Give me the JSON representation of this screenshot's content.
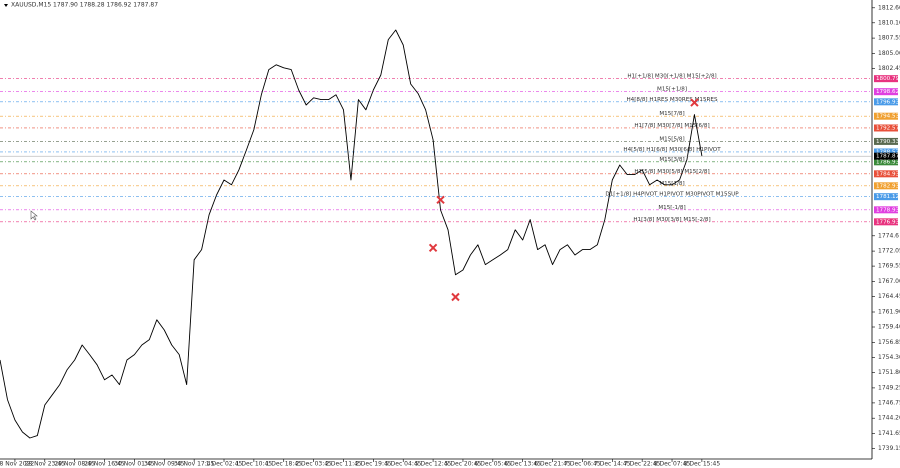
{
  "chart_data": {
    "type": "line",
    "title": "XAUUSD,M15  1787.90 1788.28 1786.92 1787.87",
    "categories": [
      null,
      null,
      "28 Nov 2022",
      null,
      null,
      null,
      "28 Nov 23:45",
      null,
      null,
      null,
      "29 Nov 08:45",
      null,
      null,
      null,
      "29 Nov 16:45",
      null,
      null,
      null,
      "30 Nov 01:45",
      null,
      null,
      null,
      "30 Nov 09:45",
      null,
      null,
      null,
      "30 Nov 17:45",
      null,
      null,
      null,
      "1 Dec 02:45",
      null,
      null,
      null,
      "1 Dec 10:45",
      null,
      null,
      null,
      "1 Dec 18:45",
      null,
      null,
      null,
      "2 Dec 03:45",
      null,
      null,
      null,
      "2 Dec 11:45",
      null,
      null,
      null,
      "2 Dec 19:45",
      null,
      null,
      null,
      "5 Dec 04:45",
      null,
      null,
      null,
      "5 Dec 12:45",
      null,
      null,
      null,
      "5 Dec 20:45",
      null,
      null,
      null,
      "6 Dec 05:45",
      null,
      null,
      null,
      "6 Dec 13:45",
      null,
      null,
      null,
      "6 Dec 21:45",
      null,
      null,
      null,
      "7 Dec 06:45",
      null,
      null,
      null,
      "7 Dec 14:45",
      null,
      null,
      null,
      "7 Dec 22:45",
      null,
      null,
      null,
      "8 Dec 07:45",
      null,
      null,
      null,
      "8 Dec 15:45"
    ],
    "series": [
      {
        "color": "#000000",
        "values": [
          1753.9,
          1747.3,
          1743.9,
          1741.9,
          1740.9,
          1741.3,
          1746.4,
          1748.1,
          1749.8,
          1752.3,
          1753.9,
          1756.4,
          1754.8,
          1753.1,
          1750.6,
          1751.4,
          1749.8,
          1753.9,
          1754.8,
          1756.4,
          1757.3,
          1760.6,
          1758.9,
          1756.4,
          1754.8,
          1749.8,
          1770.6,
          1772.3,
          1778.1,
          1781.4,
          1783.9,
          1783.1,
          1785.6,
          1788.9,
          1792.3,
          1798.1,
          1802.3,
          1803.1,
          1802.6,
          1802.3,
          1798.9,
          1796.4,
          1797.6,
          1797.3,
          1797.3,
          1798.1,
          1795.6,
          1783.9,
          1797.3,
          1795.6,
          1798.9,
          1801.4,
          1807.3,
          1808.9,
          1806.4,
          1799.9,
          1798.3,
          1795.6,
          1790.6,
          1778.9,
          1775.6,
          1768.1,
          1768.9,
          1771.4,
          1773.1,
          1769.8,
          1770.6,
          1771.4,
          1772.3,
          1775.6,
          1773.9,
          1777.3,
          1772.3,
          1773.1,
          1769.8,
          1772.3,
          1773.1,
          1771.4,
          1772.3,
          1772.3,
          1773.1,
          1777.3,
          1783.9,
          1786.4,
          1784.8,
          1784.8,
          1785.6,
          1783.1,
          1783.9,
          1783.1,
          1783.1,
          1783.9,
          1787.3,
          1794.8,
          1787.9
        ]
      }
    ],
    "markers": {
      "color": "#e0393e",
      "values": [
        null,
        null,
        null,
        null,
        null,
        null,
        null,
        null,
        null,
        null,
        null,
        null,
        null,
        null,
        null,
        null,
        null,
        null,
        null,
        null,
        null,
        null,
        null,
        null,
        null,
        null,
        null,
        null,
        null,
        null,
        null,
        null,
        null,
        null,
        null,
        null,
        null,
        null,
        null,
        null,
        null,
        null,
        null,
        null,
        null,
        null,
        null,
        null,
        null,
        null,
        null,
        null,
        null,
        null,
        null,
        null,
        null,
        null,
        1772.6,
        1780.6,
        null,
        1764.4,
        null,
        null,
        null,
        null,
        null,
        null,
        null,
        null,
        null,
        null,
        null,
        null,
        null,
        null,
        null,
        null,
        null,
        null,
        null,
        null,
        null,
        null,
        null,
        null,
        null,
        null,
        null,
        null,
        null,
        null,
        null,
        1796.8,
        null
      ]
    },
    "levels": [
      {
        "label": "H1[+1/8] M30[+1/8] M15[+2/8]",
        "price": 1800.79,
        "color": "#e8337f"
      },
      {
        "label": "M15[+1/8]",
        "price": 1798.62,
        "color": "#e040e0"
      },
      {
        "label": "H4[8/8] H1RES M30RES M15RES",
        "price": 1796.93,
        "color": "#4a9be8"
      },
      {
        "label": "M15[7/8]",
        "price": 1794.53,
        "color": "#f0a030"
      },
      {
        "label": "H1[7/8] M30[7/8] M15[6/8]",
        "price": 1792.57,
        "color": "#e8503a"
      },
      {
        "label": "M15[5/8]",
        "price": 1790.33,
        "color": "#5a6a50"
      },
      {
        "label": "H4[5/8] H1[6/8] M30[6/8] H1PIVOT",
        "price": 1788.57,
        "color": "#4a9be8"
      },
      {
        "label": "M15[3/8]",
        "price": 1786.93,
        "color": "#3a8a3a"
      },
      {
        "label": "H1[5/8] M30[5/8] M15[2/8]",
        "price": 1784.93,
        "color": "#e8503a"
      },
      {
        "label": "M15[1/8]",
        "price": 1782.93,
        "color": "#f0a030"
      },
      {
        "label": "D1[+1/8] H4PIVOT H1PIVOT M30PIVOT M15SUP",
        "price": 1781.12,
        "color": "#4a9be8"
      },
      {
        "label": "M15[-1/8]",
        "price": 1778.93,
        "color": "#e040e0"
      },
      {
        "label": "H1[3/8] M30[3/8] M15[-2/8]",
        "price": 1776.93,
        "color": "#e8337f"
      }
    ],
    "current_price": 1787.87,
    "ylim": [
      1737.4,
      1813.9
    ],
    "yticks": [
      {
        "value": 1812.6,
        "label": "1812.60"
      },
      {
        "value": 1810.1,
        "label": "1810.10"
      },
      1807.55,
      {
        "value": 1805,
        "label": "1805.00"
      },
      1802.45,
      1774.6,
      1772.05,
      1769.55,
      {
        "value": 1767,
        "label": "1767.00"
      },
      1764.45,
      {
        "value": 1761.9,
        "label": "1761.90"
      },
      {
        "value": 1759.4,
        "label": "1759.40"
      },
      1756.85,
      {
        "value": 1754.3,
        "label": "1754.30"
      },
      {
        "value": 1751.8,
        "label": "1751.80"
      },
      1749.25,
      1746.75,
      {
        "value": 1744.2,
        "label": "1744.20"
      },
      1741.65,
      1739.15
    ]
  }
}
